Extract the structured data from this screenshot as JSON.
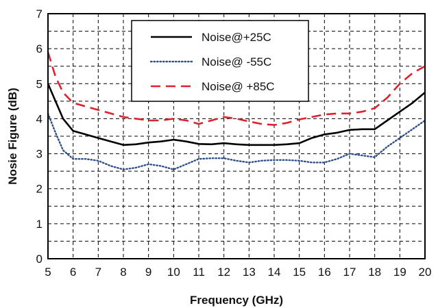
{
  "chart_data": {
    "type": "line",
    "title": "",
    "xlabel": "Frequency (GHz)",
    "ylabel": "Nosie Figure (dB)",
    "xlim": [
      5,
      20
    ],
    "ylim": [
      0,
      7
    ],
    "x_ticks": [
      5,
      6,
      7,
      8,
      9,
      10,
      11,
      12,
      13,
      14,
      15,
      16,
      17,
      18,
      19,
      20
    ],
    "y_ticks": [
      0,
      1,
      2,
      3,
      4,
      5,
      6,
      7
    ],
    "grid": true,
    "grid_style": "dashed",
    "y_minor_gridlines": [
      0.5,
      1.5,
      2.5,
      3.5,
      4.5,
      5.5,
      6.5
    ],
    "legend_position": "top-center",
    "series": [
      {
        "name": "Noise@+25C",
        "color": "#000000",
        "line_style": "solid",
        "x": [
          5,
          5.3,
          5.6,
          6,
          6.5,
          7,
          7.5,
          8,
          8.5,
          9,
          9.5,
          10,
          10.5,
          11,
          11.5,
          12,
          12.5,
          13,
          13.5,
          14,
          14.5,
          15,
          15.5,
          16,
          16.5,
          17,
          17.5,
          18,
          18.5,
          19,
          19.5,
          20
        ],
        "y": [
          5.0,
          4.5,
          4.0,
          3.65,
          3.55,
          3.45,
          3.35,
          3.25,
          3.27,
          3.32,
          3.35,
          3.4,
          3.35,
          3.28,
          3.27,
          3.3,
          3.27,
          3.25,
          3.25,
          3.25,
          3.27,
          3.3,
          3.45,
          3.55,
          3.6,
          3.68,
          3.7,
          3.7,
          3.95,
          4.2,
          4.45,
          4.75
        ]
      },
      {
        "name": "Noise@ -55C",
        "color": "#2e4e8a",
        "line_style": "dotted",
        "x": [
          5,
          5.3,
          5.6,
          6,
          6.5,
          7,
          7.5,
          8,
          8.5,
          9,
          9.5,
          10,
          10.5,
          11,
          11.5,
          12,
          12.5,
          13,
          13.5,
          14,
          14.5,
          15,
          15.5,
          16,
          16.5,
          17,
          17.5,
          18,
          18.5,
          19,
          19.5,
          20
        ],
        "y": [
          4.15,
          3.6,
          3.1,
          2.85,
          2.85,
          2.8,
          2.65,
          2.55,
          2.6,
          2.7,
          2.65,
          2.55,
          2.7,
          2.85,
          2.87,
          2.87,
          2.8,
          2.75,
          2.8,
          2.82,
          2.82,
          2.8,
          2.75,
          2.75,
          2.85,
          3.0,
          2.95,
          2.9,
          3.2,
          3.45,
          3.7,
          3.95
        ]
      },
      {
        "name": "Noise@ +85C",
        "color": "#e0202a",
        "line_style": "dashed",
        "x": [
          5,
          5.3,
          5.6,
          6,
          6.5,
          7,
          7.5,
          8,
          8.5,
          9,
          9.5,
          10,
          10.5,
          11,
          11.5,
          12,
          12.5,
          13,
          13.5,
          14,
          14.5,
          15,
          15.5,
          16,
          16.5,
          17,
          17.5,
          18,
          18.5,
          19,
          19.5,
          20
        ],
        "y": [
          5.9,
          5.2,
          4.75,
          4.45,
          4.35,
          4.25,
          4.15,
          4.05,
          4.0,
          3.95,
          3.95,
          4.0,
          3.95,
          3.85,
          3.95,
          4.05,
          4.0,
          3.92,
          3.85,
          3.82,
          3.88,
          3.98,
          4.05,
          4.12,
          4.15,
          4.15,
          4.2,
          4.3,
          4.6,
          5.0,
          5.3,
          5.5
        ]
      }
    ]
  }
}
